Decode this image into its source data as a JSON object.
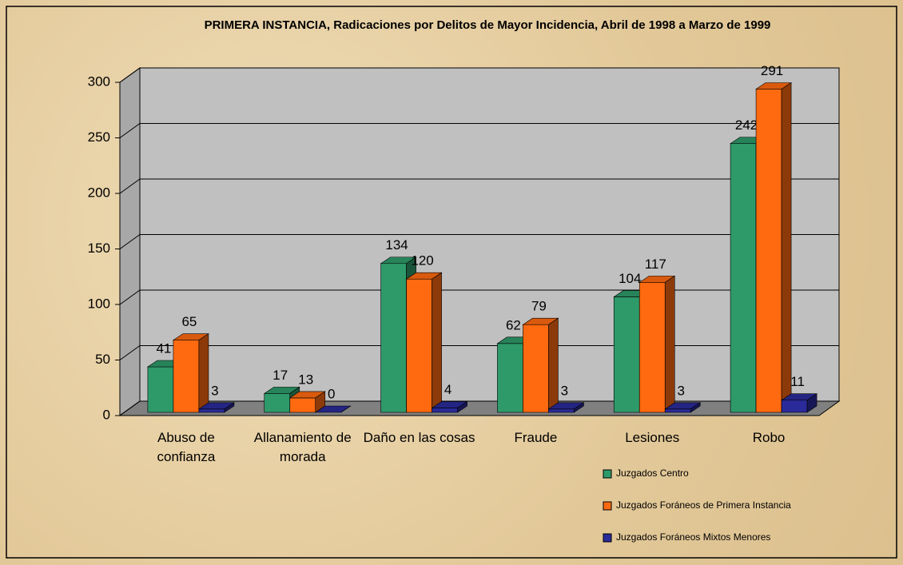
{
  "chart_data": {
    "type": "bar3d",
    "title": "PRIMERA INSTANCIA, Radicaciones por Delitos de Mayor Incidencia, Abril de 1998 a Marzo de 1999",
    "categories": [
      "Abuso de confianza",
      "Allanamiento de morada",
      "Daño en las cosas",
      "Fraude",
      "Lesiones",
      "Robo"
    ],
    "series": [
      {
        "name": "Juzgados Centro",
        "color": "#2e9a6a",
        "values": [
          41,
          17,
          134,
          62,
          104,
          242
        ]
      },
      {
        "name": "Juzgados Foráneos de Primera Instancia",
        "color": "#ff6a10",
        "values": [
          65,
          13,
          120,
          79,
          117,
          291
        ]
      },
      {
        "name": "Juzgados Foráneos Mixtos Menores",
        "color": "#2a2a9a",
        "values": [
          3,
          0,
          4,
          3,
          3,
          11
        ]
      }
    ],
    "ylim": [
      0,
      300
    ],
    "yticks": [
      0,
      50,
      100,
      150,
      200,
      250,
      300
    ],
    "grid": true,
    "legend": "bottom-right"
  }
}
